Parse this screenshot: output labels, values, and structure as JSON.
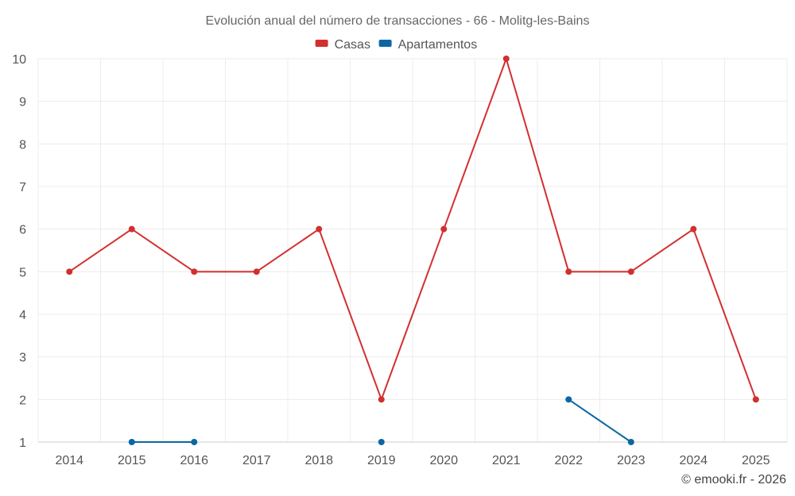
{
  "chart_data": {
    "type": "line",
    "title": "Evolución anual del número de transacciones - 66 - Molitg-les-Bains",
    "categories": [
      "2014",
      "2015",
      "2016",
      "2017",
      "2018",
      "2019",
      "2020",
      "2021",
      "2022",
      "2023",
      "2024",
      "2025"
    ],
    "ylim": [
      1,
      10
    ],
    "yticks": [
      1,
      2,
      3,
      4,
      5,
      6,
      7,
      8,
      9,
      10
    ],
    "grid": true,
    "legend_position": "top-center",
    "series": [
      {
        "name": "Casas",
        "color": "#d32f2f",
        "values": [
          5,
          6,
          5,
          5,
          6,
          2,
          6,
          10,
          5,
          5,
          6,
          2
        ]
      },
      {
        "name": "Apartamentos",
        "color": "#0a67a3",
        "values": [
          null,
          1,
          1,
          null,
          null,
          1,
          null,
          null,
          2,
          1,
          null,
          null
        ]
      }
    ]
  },
  "credit": "© emooki.fr - 2026"
}
